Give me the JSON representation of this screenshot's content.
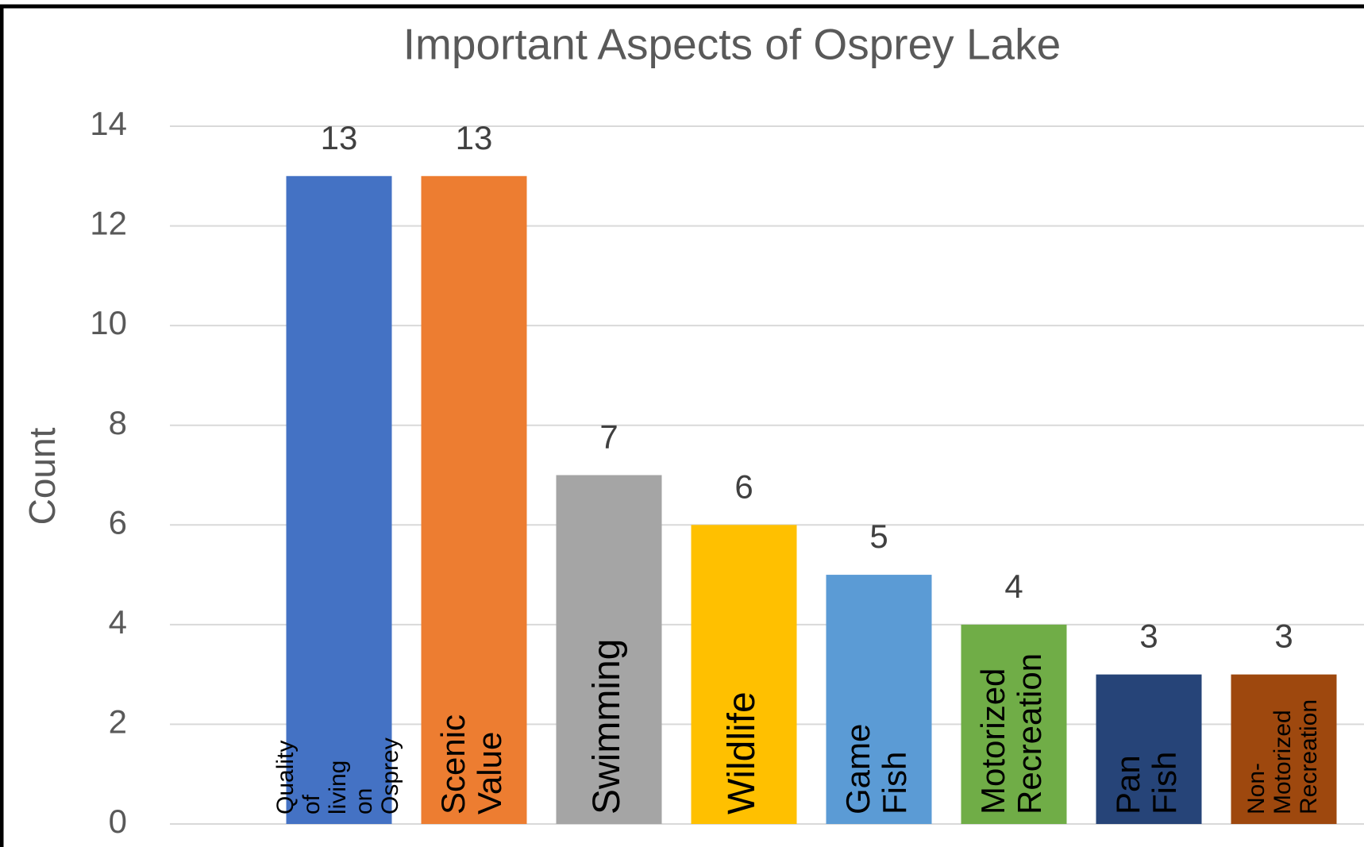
{
  "chart_data": {
    "type": "bar",
    "title": "Important Aspects of Osprey Lake",
    "y_label": "Count",
    "categories": [
      "Quality of living on Osprey",
      "Scenic Value",
      "Swimming",
      "Wildlife",
      "Game Fish",
      "Motorized Recreation",
      "Pan Fish",
      "Non-Motorized Recreation"
    ],
    "values": [
      13,
      13,
      7,
      6,
      5,
      4,
      3,
      3
    ],
    "colors": [
      "#4472c4",
      "#ed7d31",
      "#a5a5a5",
      "#ffc000",
      "#5b9bd5",
      "#70ad47",
      "#264478",
      "#9e480e"
    ],
    "ylim": [
      0,
      14
    ],
    "yticks": [
      0,
      2,
      4,
      6,
      8,
      10,
      12,
      14
    ],
    "grid": true
  }
}
